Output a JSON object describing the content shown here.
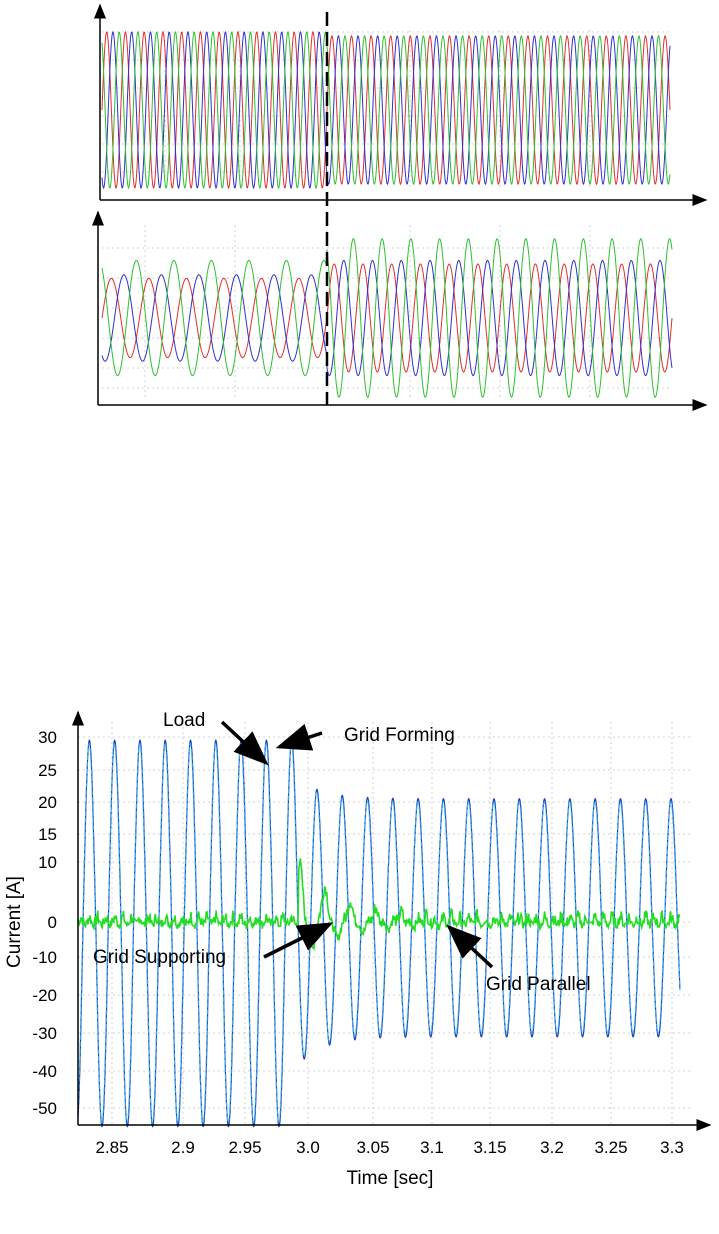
{
  "figure": {
    "colors": {
      "phase_a": "#e03030",
      "phase_b": "#3030d0",
      "phase_c": "#30c030",
      "load_current": "#1b3fbf",
      "grid_forming_current": "#2fb4e8",
      "grid_supporting_current": "#22dd22",
      "grid": "#c8c8c8",
      "axis": "#000000"
    },
    "event_marker": "dashed vertical line at disturbance"
  },
  "chart_data": [
    {
      "type": "line",
      "title": "",
      "xlabel": "",
      "ylabel": "",
      "axes_labeled": false,
      "series": [
        {
          "color": "#e03030",
          "amplitude_before": 1.0,
          "amplitude_after": 0.95,
          "phase_deg": 0
        },
        {
          "color": "#3030d0",
          "amplitude_before": 1.0,
          "amplitude_after": 0.95,
          "phase_deg": -120
        },
        {
          "color": "#30c030",
          "amplitude_before": 1.0,
          "amplitude_after": 0.95,
          "phase_deg": 120
        }
      ],
      "cycles_before_event": 12,
      "cycles_after_event": 17.5
    },
    {
      "type": "line",
      "title": "",
      "xlabel": "",
      "ylabel": "",
      "axes_labeled": false,
      "series": [
        {
          "color": "#e03030",
          "amplitude_before": 0.55,
          "amplitude_after": 0.75,
          "phase_deg": 0
        },
        {
          "color": "#3030d0",
          "amplitude_before": 0.6,
          "amplitude_after": 0.8,
          "phase_deg": -120
        },
        {
          "color": "#30c030",
          "amplitude_before": 0.8,
          "amplitude_after": 1.1,
          "phase_deg": 120
        }
      ],
      "cycles_before_event": 6,
      "cycles_after_event": 12
    },
    {
      "type": "line",
      "title": "",
      "xlabel": "Time [sec]",
      "ylabel": "Current [A]",
      "x_ticks": [
        "2.85",
        "2.9",
        "2.95",
        "3.0",
        "3.05",
        "3.1",
        "3.15",
        "3.2",
        "3.25",
        "3.3"
      ],
      "y_ticks": [
        "30",
        "25",
        "20",
        "15",
        "10",
        "0",
        "-10",
        "-20",
        "-30",
        "-40",
        "-50"
      ],
      "xlim": [
        2.826,
        3.31
      ],
      "ylim": [
        -57,
        35
      ],
      "event_time": 3.0,
      "frequency_hz": 50,
      "series": [
        {
          "key": "load",
          "color": "#1b3fbf",
          "peak_before": 29.5,
          "trough_before": -55,
          "peak_after": 20.5,
          "trough_after": -31
        },
        {
          "key": "grid_forming",
          "color": "#2fb4e8",
          "peak_before": 29,
          "trough_before": -54,
          "peak_after": 20,
          "trough_after": -30
        },
        {
          "key": "grid_supporting",
          "color": "#22dd22",
          "mean": 0,
          "noise": 1.2,
          "transient_peak": 9.5,
          "transient_decay_s": 0.035
        }
      ],
      "annotations": [
        {
          "text": "Load"
        },
        {
          "text": "Grid Forming"
        },
        {
          "text": "Grid Supporting"
        },
        {
          "text": "Grid Parallel"
        }
      ]
    }
  ]
}
